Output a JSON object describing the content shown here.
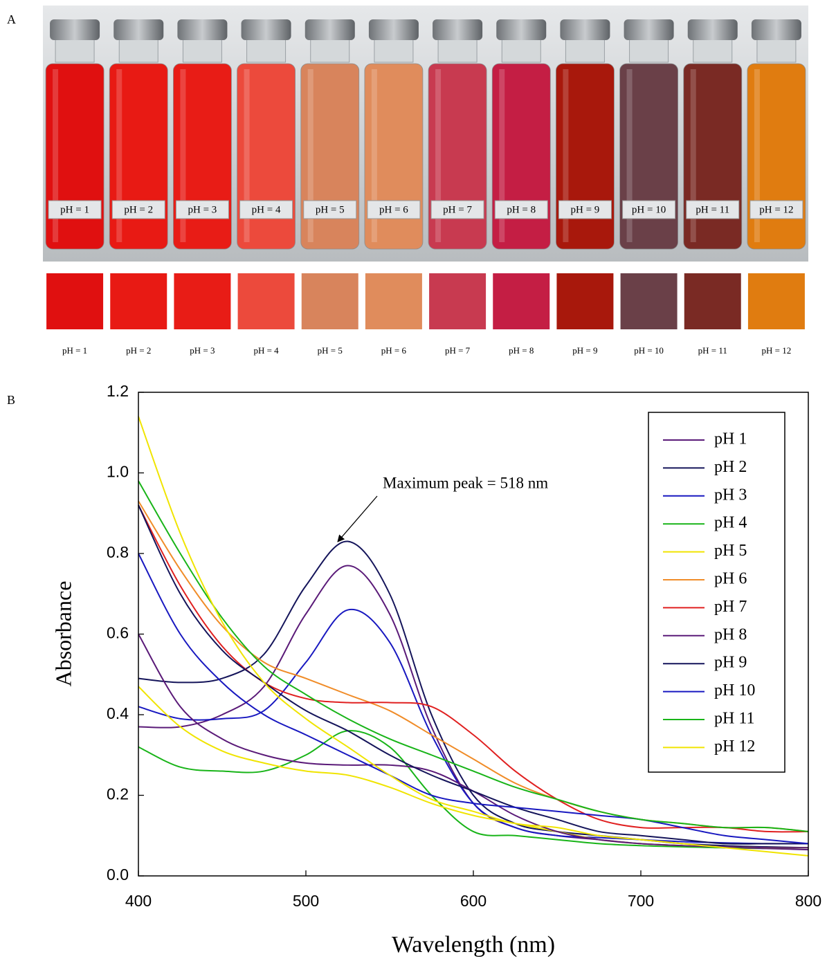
{
  "panel_a": {
    "label": "A",
    "vial_labels": [
      "pH = 1",
      "pH = 2",
      "pH = 3",
      "pH = 4",
      "pH = 5",
      "pH = 6",
      "pH = 7",
      "pH = 8",
      "pH = 9",
      "pH = 10",
      "pH = 11",
      "pH = 12"
    ],
    "swatch_labels": [
      "pH = 1",
      "pH = 2",
      "pH = 3",
      "pH = 4",
      "pH = 5",
      "pH = 6",
      "pH = 7",
      "pH = 8",
      "pH = 9",
      "pH = 10",
      "pH = 11",
      "pH = 12"
    ],
    "colors": [
      "#e01010",
      "#e81a14",
      "#e81c16",
      "#ec4a3c",
      "#d8845c",
      "#e08c5c",
      "#c83a50",
      "#c41e44",
      "#a8180c",
      "#6a4048",
      "#7a2a24",
      "#e07c10"
    ]
  },
  "chart_data": {
    "type": "line",
    "panel_label": "B",
    "annotation": "Maximum  peak = 518 nm",
    "x_label": "Wavelength (nm)",
    "y_label": "Absorbance",
    "xlim": [
      400,
      800
    ],
    "xticks": [
      400,
      500,
      600,
      700,
      800
    ],
    "ylim": [
      0,
      1.2
    ],
    "yticks": [
      {
        "value": 0,
        "label": "0.0"
      },
      0.2,
      0.4,
      0.6,
      0.8,
      {
        "value": 1,
        "label": "1.0"
      },
      1.2
    ],
    "legend": "top-right",
    "x": [
      400,
      425,
      450,
      475,
      500,
      525,
      550,
      575,
      600,
      625,
      650,
      675,
      700,
      725,
      750,
      775,
      800
    ],
    "series": [
      {
        "name": "pH 1",
        "color": "#5a1a78",
        "values": [
          0.37,
          0.37,
          0.4,
          0.47,
          0.65,
          0.77,
          0.65,
          0.37,
          0.18,
          0.12,
          0.1,
          0.09,
          0.08,
          0.075,
          0.07,
          0.068,
          0.065
        ]
      },
      {
        "name": "pH 2",
        "color": "#14145a",
        "values": [
          0.49,
          0.48,
          0.49,
          0.55,
          0.72,
          0.83,
          0.7,
          0.4,
          0.2,
          0.13,
          0.11,
          0.1,
          0.09,
          0.08,
          0.075,
          0.072,
          0.07
        ]
      },
      {
        "name": "pH 3",
        "color": "#1818c0",
        "values": [
          0.42,
          0.39,
          0.39,
          0.41,
          0.53,
          0.66,
          0.58,
          0.35,
          0.18,
          0.12,
          0.1,
          0.095,
          0.09,
          0.085,
          0.082,
          0.08,
          0.08
        ]
      },
      {
        "name": "pH 4",
        "color": "#18b418",
        "values": [
          0.32,
          0.27,
          0.26,
          0.26,
          0.3,
          0.36,
          0.32,
          0.2,
          0.11,
          0.1,
          0.09,
          0.08,
          0.075,
          0.072,
          0.07,
          0.07,
          0.07
        ]
      },
      {
        "name": "pH 5",
        "color": "#f0e400",
        "values": [
          0.47,
          0.37,
          0.31,
          0.28,
          0.26,
          0.25,
          0.22,
          0.18,
          0.15,
          0.13,
          0.11,
          0.09,
          0.08,
          0.075,
          0.072,
          0.07,
          0.07
        ]
      },
      {
        "name": "pH 6",
        "color": "#f08c28",
        "values": [
          0.93,
          0.76,
          0.62,
          0.53,
          0.49,
          0.45,
          0.41,
          0.35,
          0.29,
          0.23,
          0.19,
          0.16,
          0.14,
          0.13,
          0.12,
          0.12,
          0.11
        ]
      },
      {
        "name": "pH 7",
        "color": "#e02020",
        "values": [
          0.92,
          0.72,
          0.57,
          0.48,
          0.44,
          0.43,
          0.43,
          0.42,
          0.35,
          0.26,
          0.19,
          0.14,
          0.12,
          0.12,
          0.12,
          0.11,
          0.11
        ]
      },
      {
        "name": "pH 8",
        "color": "#5a1a78",
        "values": [
          0.6,
          0.42,
          0.34,
          0.3,
          0.28,
          0.275,
          0.275,
          0.26,
          0.21,
          0.15,
          0.11,
          0.09,
          0.08,
          0.075,
          0.072,
          0.07,
          0.07
        ]
      },
      {
        "name": "pH 9",
        "color": "#14145a",
        "values": [
          0.92,
          0.7,
          0.56,
          0.48,
          0.41,
          0.36,
          0.3,
          0.25,
          0.21,
          0.17,
          0.14,
          0.11,
          0.1,
          0.09,
          0.08,
          0.08,
          0.08
        ]
      },
      {
        "name": "pH 10",
        "color": "#1818c0",
        "values": [
          0.8,
          0.6,
          0.48,
          0.4,
          0.35,
          0.3,
          0.25,
          0.2,
          0.18,
          0.17,
          0.16,
          0.15,
          0.14,
          0.12,
          0.1,
          0.09,
          0.08
        ]
      },
      {
        "name": "pH 11",
        "color": "#18b418",
        "values": [
          0.98,
          0.8,
          0.64,
          0.52,
          0.45,
          0.39,
          0.34,
          0.3,
          0.26,
          0.22,
          0.19,
          0.16,
          0.14,
          0.13,
          0.12,
          0.12,
          0.11
        ]
      },
      {
        "name": "pH 12",
        "color": "#f0e400",
        "values": [
          1.14,
          0.85,
          0.63,
          0.48,
          0.39,
          0.32,
          0.25,
          0.19,
          0.16,
          0.13,
          0.12,
          0.1,
          0.09,
          0.08,
          0.07,
          0.06,
          0.05
        ]
      }
    ]
  }
}
